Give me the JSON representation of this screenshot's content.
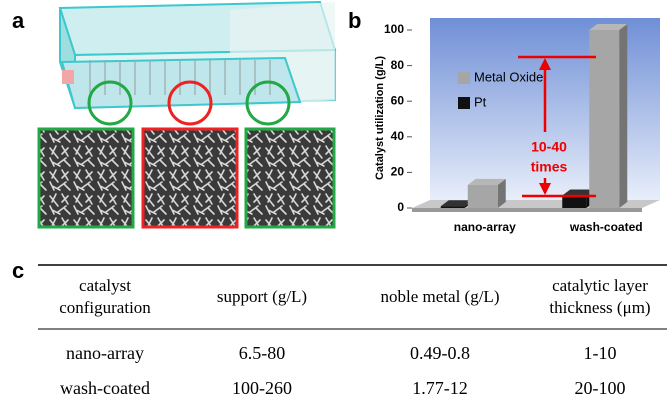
{
  "panels": {
    "a": "a",
    "b": "b",
    "c": "c"
  },
  "chart_data": {
    "type": "bar3d",
    "y_label": "Catalyst utilization (g/L)",
    "categories": [
      "nano-array",
      "wash-coated"
    ],
    "series": [
      {
        "name": "Metal Oxide",
        "color": "#a6a6a6",
        "values": [
          13,
          100
        ]
      },
      {
        "name": "Pt",
        "color": "#111111",
        "values": [
          1,
          7
        ]
      }
    ],
    "ylim": [
      0,
      100
    ],
    "yticks": [
      0,
      20,
      40,
      60,
      80,
      100
    ],
    "annotation_lines": [
      "10-40",
      "times"
    ]
  },
  "table": {
    "header": [
      [
        "catalyst",
        "configuration"
      ],
      [
        "support (g/L)"
      ],
      [
        "noble metal (g/L)"
      ],
      [
        "catalytic layer",
        "thickness (μm)"
      ]
    ],
    "rows": [
      [
        "nano-array",
        "6.5-80",
        "0.49-0.8",
        "1-10"
      ],
      [
        "wash-coated",
        "100-260",
        "1.77-12",
        "20-100"
      ]
    ]
  }
}
